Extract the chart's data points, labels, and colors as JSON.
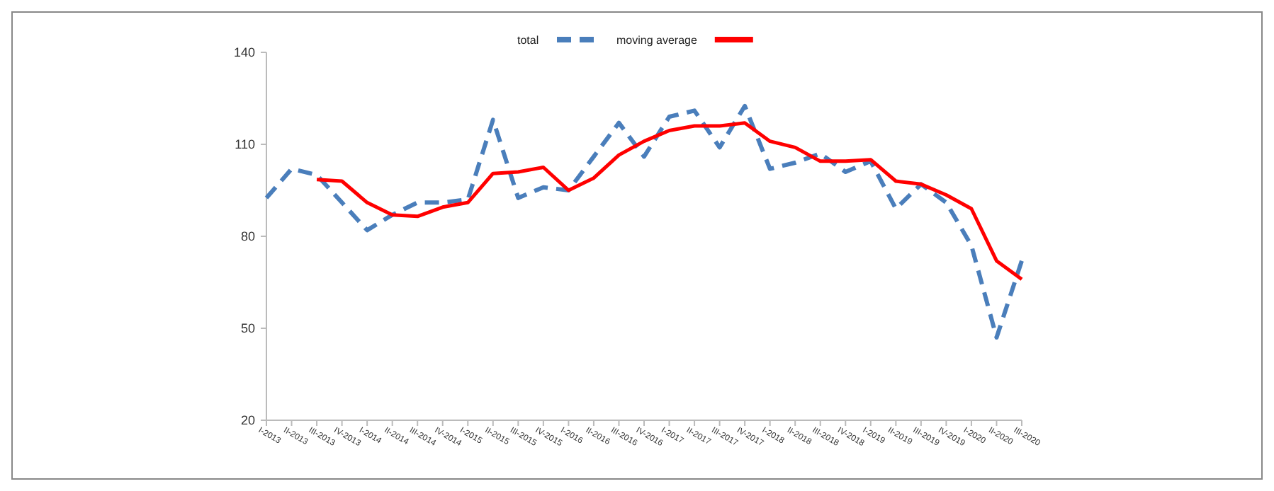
{
  "chart_data": {
    "type": "line",
    "categories": [
      "I-2013",
      "II-2013",
      "III-2013",
      "IV-2013",
      "I-2014",
      "II-2014",
      "III-2014",
      "IV-2014",
      "I-2015",
      "II-2015",
      "III-2015",
      "IV-2015",
      "I-2016",
      "II-2016",
      "III-2016",
      "IV-2016",
      "I-2017",
      "II-2017",
      "III-2017",
      "IV-2017",
      "I-2018",
      "II-2018",
      "III-2018",
      "IV-2018",
      "I-2019",
      "II-2019",
      "III-2019",
      "IV-2019",
      "I-2020",
      "II-2020",
      "III-2020"
    ],
    "series": [
      {
        "name": "total",
        "color": "#4a7ebb",
        "line_style": "dashed",
        "values": [
          92.5,
          102,
          100,
          91,
          82,
          87,
          91,
          91,
          92,
          118,
          92.5,
          96,
          95,
          106,
          117,
          106,
          119,
          121,
          109,
          122.5,
          102,
          104,
          107,
          101,
          104.5,
          89,
          97,
          91,
          77,
          47,
          72
        ]
      },
      {
        "name": "moving average",
        "color": "#ff0000",
        "line_style": "solid",
        "values": [
          null,
          null,
          98.5,
          98,
          91,
          87,
          86.5,
          89.5,
          91,
          100.5,
          101,
          102.5,
          95,
          99,
          106.5,
          111,
          114.5,
          116,
          116,
          117,
          111,
          109,
          104.5,
          104.5,
          105,
          98,
          97,
          93.5,
          89,
          72,
          66
        ]
      }
    ],
    "ylim": [
      20,
      140
    ],
    "yticks": [
      20,
      50,
      80,
      110,
      140
    ],
    "grid": false,
    "legend": "top",
    "marker": "none"
  }
}
